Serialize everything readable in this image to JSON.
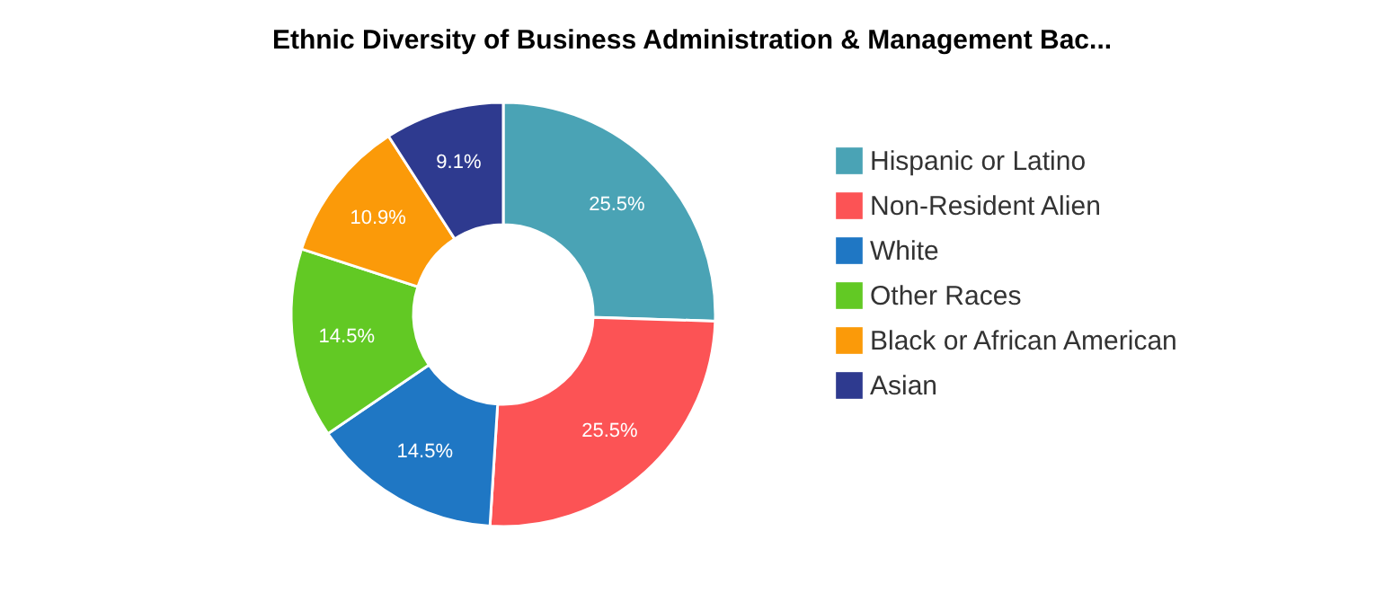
{
  "chart_data": {
    "type": "donut",
    "title": "Ethnic Diversity of Business Administration & Management Bac...",
    "categories": [
      "Hispanic or Latino",
      "Non-Resident Alien",
      "White",
      "Other Races",
      "Black or African American",
      "Asian"
    ],
    "values": [
      25.5,
      25.5,
      14.5,
      14.5,
      10.9,
      9.1
    ],
    "colors": [
      "#4aa3b5",
      "#fc5355",
      "#1f77c4",
      "#62c924",
      "#fb9a09",
      "#2e3a8f"
    ],
    "value_labels": [
      "25.5%",
      "25.5%",
      "14.5%",
      "14.5%",
      "10.9%",
      "9.1%"
    ],
    "legend": "right"
  }
}
